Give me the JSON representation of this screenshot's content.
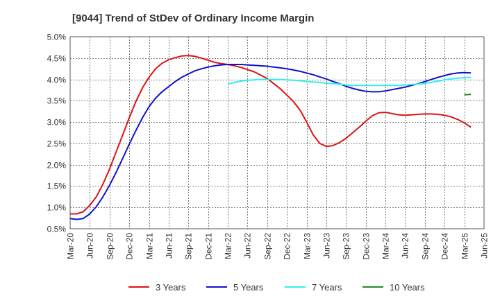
{
  "chart_data": {
    "type": "line",
    "title": "[9044]  Trend of StDev of Ordinary Income Margin",
    "xlabel": "",
    "ylabel": "",
    "x_tick_labels": [
      "Mar-20",
      "Jun-20",
      "Sep-20",
      "Dec-20",
      "Mar-21",
      "Jun-21",
      "Sep-21",
      "Dec-21",
      "Mar-22",
      "Jun-22",
      "Sep-22",
      "Dec-22",
      "Mar-23",
      "Jun-23",
      "Sep-23",
      "Dec-23",
      "Mar-24",
      "Jun-24",
      "Sep-24",
      "Dec-24",
      "Mar-25",
      "Jun-25"
    ],
    "y_tick_labels": [
      "0.5%",
      "1.0%",
      "1.5%",
      "2.0%",
      "2.5%",
      "3.0%",
      "3.5%",
      "4.0%",
      "4.5%",
      "5.0%"
    ],
    "y_ticks": [
      0.5,
      1.0,
      1.5,
      2.0,
      2.5,
      3.0,
      3.5,
      4.0,
      4.5,
      5.0
    ],
    "ylim": [
      0.5,
      5.0
    ],
    "grid": true,
    "legend_position": "bottom",
    "series": [
      {
        "name": "3 Years",
        "color": "#dd1111",
        "points": [
          [
            "Mar-20",
            0.85
          ],
          [
            "Apr-20",
            0.85
          ],
          [
            "May-20",
            0.9
          ],
          [
            "Jun-20",
            1.05
          ],
          [
            "Jul-20",
            1.25
          ],
          [
            "Aug-20",
            1.55
          ],
          [
            "Sep-20",
            1.9
          ],
          [
            "Oct-20",
            2.3
          ],
          [
            "Nov-20",
            2.7
          ],
          [
            "Dec-20",
            3.1
          ],
          [
            "Jan-21",
            3.48
          ],
          [
            "Feb-21",
            3.8
          ],
          [
            "Mar-21",
            4.05
          ],
          [
            "Apr-21",
            4.25
          ],
          [
            "May-21",
            4.38
          ],
          [
            "Jun-21",
            4.46
          ],
          [
            "Jul-21",
            4.51
          ],
          [
            "Aug-21",
            4.55
          ],
          [
            "Sep-21",
            4.56
          ],
          [
            "Oct-21",
            4.54
          ],
          [
            "Nov-21",
            4.5
          ],
          [
            "Dec-21",
            4.45
          ],
          [
            "Jan-22",
            4.4
          ],
          [
            "Feb-22",
            4.37
          ],
          [
            "Mar-22",
            4.35
          ],
          [
            "Apr-22",
            4.32
          ],
          [
            "May-22",
            4.28
          ],
          [
            "Jun-22",
            4.23
          ],
          [
            "Jul-22",
            4.18
          ],
          [
            "Aug-22",
            4.1
          ],
          [
            "Sep-22",
            4.02
          ],
          [
            "Oct-22",
            3.9
          ],
          [
            "Nov-22",
            3.78
          ],
          [
            "Dec-22",
            3.63
          ],
          [
            "Jan-23",
            3.48
          ],
          [
            "Feb-23",
            3.28
          ],
          [
            "Mar-23",
            3.0
          ],
          [
            "Apr-23",
            2.7
          ],
          [
            "May-23",
            2.5
          ],
          [
            "Jun-23",
            2.43
          ],
          [
            "Jul-23",
            2.45
          ],
          [
            "Aug-23",
            2.52
          ],
          [
            "Sep-23",
            2.62
          ],
          [
            "Oct-23",
            2.75
          ],
          [
            "Nov-23",
            2.88
          ],
          [
            "Dec-23",
            3.02
          ],
          [
            "Jan-24",
            3.15
          ],
          [
            "Feb-24",
            3.22
          ],
          [
            "Mar-24",
            3.23
          ],
          [
            "Apr-24",
            3.2
          ],
          [
            "May-24",
            3.17
          ],
          [
            "Jun-24",
            3.16
          ],
          [
            "Jul-24",
            3.17
          ],
          [
            "Aug-24",
            3.18
          ],
          [
            "Sep-24",
            3.19
          ],
          [
            "Oct-24",
            3.19
          ],
          [
            "Nov-24",
            3.18
          ],
          [
            "Dec-24",
            3.16
          ],
          [
            "Jan-25",
            3.12
          ],
          [
            "Feb-25",
            3.06
          ],
          [
            "Mar-25",
            2.98
          ],
          [
            "Apr-25",
            2.88
          ]
        ]
      },
      {
        "name": "5 Years",
        "color": "#1111cc",
        "points": [
          [
            "Mar-20",
            0.74
          ],
          [
            "Apr-20",
            0.72
          ],
          [
            "May-20",
            0.74
          ],
          [
            "Jun-20",
            0.85
          ],
          [
            "Jul-20",
            1.02
          ],
          [
            "Aug-20",
            1.25
          ],
          [
            "Sep-20",
            1.52
          ],
          [
            "Oct-20",
            1.82
          ],
          [
            "Nov-20",
            2.15
          ],
          [
            "Dec-20",
            2.48
          ],
          [
            "Jan-21",
            2.8
          ],
          [
            "Feb-21",
            3.1
          ],
          [
            "Mar-21",
            3.36
          ],
          [
            "Apr-21",
            3.56
          ],
          [
            "May-21",
            3.71
          ],
          [
            "Jun-21",
            3.83
          ],
          [
            "Jul-21",
            3.95
          ],
          [
            "Aug-21",
            4.05
          ],
          [
            "Sep-21",
            4.13
          ],
          [
            "Oct-21",
            4.2
          ],
          [
            "Nov-21",
            4.25
          ],
          [
            "Dec-21",
            4.29
          ],
          [
            "Jan-22",
            4.32
          ],
          [
            "Feb-22",
            4.34
          ],
          [
            "Mar-22",
            4.35
          ],
          [
            "Apr-22",
            4.35
          ],
          [
            "May-22",
            4.35
          ],
          [
            "Jun-22",
            4.34
          ],
          [
            "Jul-22",
            4.33
          ],
          [
            "Aug-22",
            4.32
          ],
          [
            "Sep-22",
            4.31
          ],
          [
            "Oct-22",
            4.29
          ],
          [
            "Nov-22",
            4.27
          ],
          [
            "Dec-22",
            4.25
          ],
          [
            "Jan-23",
            4.22
          ],
          [
            "Feb-23",
            4.19
          ],
          [
            "Mar-23",
            4.15
          ],
          [
            "Apr-23",
            4.11
          ],
          [
            "May-23",
            4.06
          ],
          [
            "Jun-23",
            4.01
          ],
          [
            "Jul-23",
            3.95
          ],
          [
            "Aug-23",
            3.9
          ],
          [
            "Sep-23",
            3.84
          ],
          [
            "Oct-23",
            3.79
          ],
          [
            "Nov-23",
            3.75
          ],
          [
            "Dec-23",
            3.72
          ],
          [
            "Jan-24",
            3.71
          ],
          [
            "Feb-24",
            3.71
          ],
          [
            "Mar-24",
            3.73
          ],
          [
            "Apr-24",
            3.76
          ],
          [
            "May-24",
            3.79
          ],
          [
            "Jun-24",
            3.82
          ],
          [
            "Jul-24",
            3.86
          ],
          [
            "Aug-24",
            3.9
          ],
          [
            "Sep-24",
            3.95
          ],
          [
            "Oct-24",
            4.0
          ],
          [
            "Nov-24",
            4.05
          ],
          [
            "Dec-24",
            4.09
          ],
          [
            "Jan-25",
            4.13
          ],
          [
            "Feb-25",
            4.15
          ],
          [
            "Mar-25",
            4.16
          ],
          [
            "Apr-25",
            4.15
          ]
        ]
      },
      {
        "name": "7 Years",
        "color": "#33eeee",
        "points": [
          [
            "Mar-22",
            3.89
          ],
          [
            "Apr-22",
            3.93
          ],
          [
            "May-22",
            3.96
          ],
          [
            "Jun-22",
            3.98
          ],
          [
            "Jul-22",
            3.99
          ],
          [
            "Aug-22",
            4.0
          ],
          [
            "Sep-22",
            4.0
          ],
          [
            "Oct-22",
            4.0
          ],
          [
            "Nov-22",
            4.0
          ],
          [
            "Dec-22",
            3.99
          ],
          [
            "Jan-23",
            3.98
          ],
          [
            "Feb-23",
            3.97
          ],
          [
            "Mar-23",
            3.95
          ],
          [
            "Apr-23",
            3.94
          ],
          [
            "May-23",
            3.93
          ],
          [
            "Jun-23",
            3.91
          ],
          [
            "Jul-23",
            3.9
          ],
          [
            "Aug-23",
            3.89
          ],
          [
            "Sep-23",
            3.87
          ],
          [
            "Oct-23",
            3.86
          ],
          [
            "Nov-23",
            3.86
          ],
          [
            "Dec-23",
            3.86
          ],
          [
            "Jan-24",
            3.86
          ],
          [
            "Feb-24",
            3.86
          ],
          [
            "Mar-24",
            3.86
          ],
          [
            "Apr-24",
            3.86
          ],
          [
            "May-24",
            3.86
          ],
          [
            "Jun-24",
            3.87
          ],
          [
            "Jul-24",
            3.88
          ],
          [
            "Aug-24",
            3.89
          ],
          [
            "Sep-24",
            3.91
          ],
          [
            "Oct-24",
            3.93
          ],
          [
            "Nov-24",
            3.96
          ],
          [
            "Dec-24",
            3.99
          ],
          [
            "Jan-25",
            4.01
          ],
          [
            "Feb-25",
            4.03
          ],
          [
            "Mar-25",
            4.04
          ],
          [
            "Apr-25",
            4.05
          ]
        ]
      },
      {
        "name": "10 Years",
        "color": "#228822",
        "points": [
          [
            "Mar-25",
            3.64
          ],
          [
            "Apr-25",
            3.65
          ]
        ]
      }
    ]
  }
}
